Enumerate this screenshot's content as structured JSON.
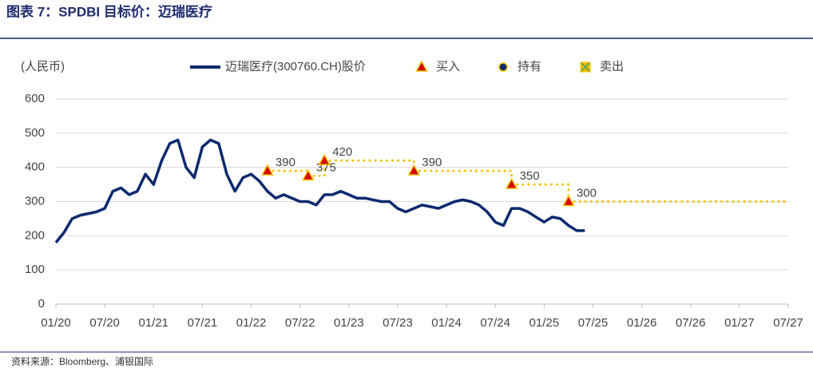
{
  "chart_data": {
    "type": "line",
    "title": "图表 7：SPDBI 目标价：迈瑞医疗",
    "ylabel": "(人民币)",
    "source": "资料来源：Bloomberg、浦银国际",
    "xlim": [
      "2020-01",
      "2027-07"
    ],
    "xticks": [
      {
        "value": "2020-01",
        "label": "01/20"
      },
      {
        "value": "2020-07",
        "label": "07/20"
      },
      {
        "value": "2021-01",
        "label": "01/21"
      },
      {
        "value": "2021-07",
        "label": "07/21"
      },
      {
        "value": "2022-01",
        "label": "01/22"
      },
      {
        "value": "2022-07",
        "label": "07/22"
      },
      {
        "value": "2023-01",
        "label": "01/23"
      },
      {
        "value": "2023-07",
        "label": "07/23"
      },
      {
        "value": "2024-01",
        "label": "01/24"
      },
      {
        "value": "2024-07",
        "label": "07/24"
      },
      {
        "value": "2025-01",
        "label": "01/25"
      },
      {
        "value": "2025-07",
        "label": "07/25"
      },
      {
        "value": "2026-01",
        "label": "01/26"
      },
      {
        "value": "2026-07",
        "label": "07/26"
      },
      {
        "value": "2027-01",
        "label": "01/27"
      },
      {
        "value": "2027-07",
        "label": "07/27"
      }
    ],
    "ylim": [
      0,
      600
    ],
    "yticks": [
      0,
      100,
      200,
      300,
      400,
      500,
      600
    ],
    "grid": true,
    "target_line_color": "#f5c000",
    "series": [
      {
        "name": "迈瑞医疗(300760.CH)股价",
        "marker": "line",
        "color": "#0c2a6e",
        "x": [
          "2020-01",
          "2020-02",
          "2020-03",
          "2020-04",
          "2020-05",
          "2020-06",
          "2020-07",
          "2020-08",
          "2020-09",
          "2020-10",
          "2020-11",
          "2020-12",
          "2021-01",
          "2021-02",
          "2021-03",
          "2021-04",
          "2021-05",
          "2021-06",
          "2021-07",
          "2021-08",
          "2021-09",
          "2021-10",
          "2021-11",
          "2021-12",
          "2022-01",
          "2022-02",
          "2022-03",
          "2022-04",
          "2022-05",
          "2022-06",
          "2022-07",
          "2022-08",
          "2022-09",
          "2022-10",
          "2022-11",
          "2022-12",
          "2023-01",
          "2023-02",
          "2023-03",
          "2023-04",
          "2023-05",
          "2023-06",
          "2023-07",
          "2023-08",
          "2023-09",
          "2023-10",
          "2023-11",
          "2023-12",
          "2024-01",
          "2024-02",
          "2024-03",
          "2024-04",
          "2024-05",
          "2024-06",
          "2024-07",
          "2024-08",
          "2024-09",
          "2024-10",
          "2024-11",
          "2024-12",
          "2025-01",
          "2025-02",
          "2025-03",
          "2025-04",
          "2025-05",
          "2025-06"
        ],
        "values": [
          180,
          210,
          250,
          260,
          265,
          270,
          280,
          330,
          340,
          320,
          330,
          380,
          350,
          420,
          470,
          480,
          400,
          370,
          460,
          480,
          470,
          380,
          330,
          370,
          380,
          360,
          330,
          310,
          320,
          310,
          300,
          300,
          290,
          320,
          320,
          330,
          320,
          310,
          310,
          305,
          300,
          300,
          280,
          270,
          280,
          290,
          285,
          280,
          290,
          300,
          305,
          300,
          290,
          270,
          240,
          230,
          280,
          280,
          270,
          255,
          240,
          255,
          250,
          230,
          215,
          215
        ]
      },
      {
        "name": "买入",
        "marker": "triangle",
        "color": "#d40000",
        "x": [
          "2022-03",
          "2022-08",
          "2022-10",
          "2023-09",
          "2024-09",
          "2025-04"
        ],
        "values": [
          390,
          375,
          420,
          390,
          350,
          300
        ]
      },
      {
        "name": "持有",
        "marker": "circle",
        "color": "#0c2a6e",
        "x": [],
        "values": []
      },
      {
        "name": "卖出",
        "marker": "square",
        "color": "#6aa84f",
        "x": [],
        "values": []
      }
    ]
  }
}
